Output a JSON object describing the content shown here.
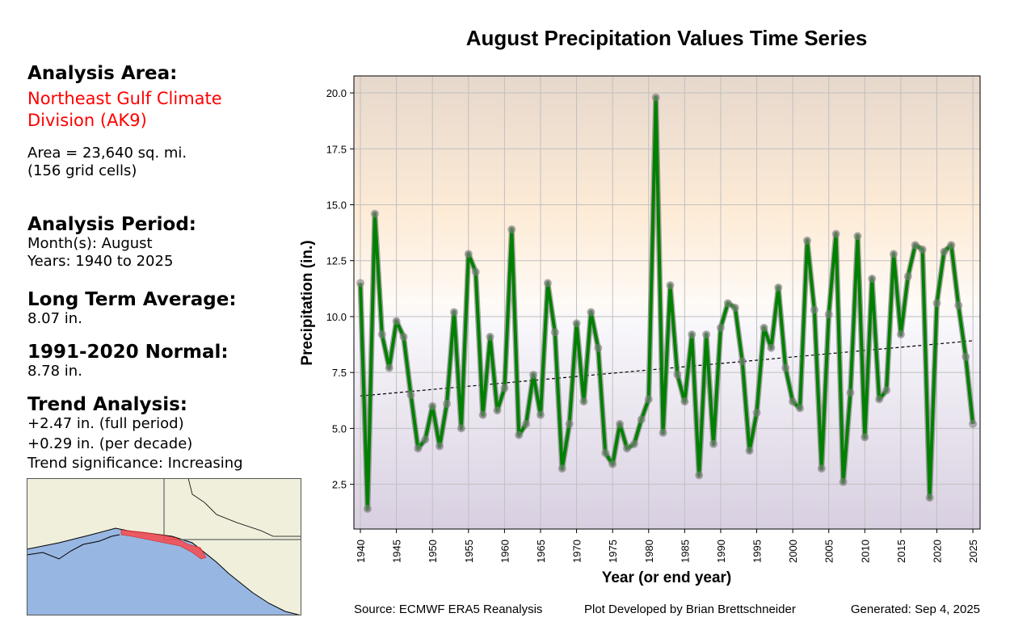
{
  "left_panel": {
    "area_header": "Analysis Area:",
    "area_name_line1": "Northeast Gulf Climate",
    "area_name_line2": "Division (AK9)",
    "area_size_line1": "Area = 23,640 sq. mi.",
    "area_size_line2": "(156 grid cells)",
    "period_header": "Analysis Period:",
    "period_months": "Month(s): August",
    "period_years": "Years: 1940 to 2025",
    "lta_header": "Long Term Average:",
    "lta_value": "8.07 in.",
    "normal_header": "1991-2020 Normal:",
    "normal_value": "8.78 in.",
    "trend_header": "Trend Analysis:",
    "trend_full": "+2.47 in. (full period)",
    "trend_decade": "+0.29 in. (per decade)",
    "trend_significance": "Trend significance: Increasing"
  },
  "footer": {
    "source": "Source: ECMWF ERA5 Reanalysis",
    "developer": "Plot Developed by Brian Brettschneider",
    "generated": "Generated: Sep 4, 2025"
  },
  "colors": {
    "line": "#008000",
    "marker": "#808080",
    "trend": "#000000",
    "highlight_region": "#ff4444",
    "ocean": "#97b6e1",
    "land": "#efefdb"
  },
  "chart_data": {
    "type": "line",
    "title": "August Precipitation Values Time Series",
    "xlabel": "Year (or end year)",
    "ylabel": "Precipitation (in.)",
    "xlim": [
      1939.1,
      2026.0
    ],
    "ylim": [
      0.5,
      20.76
    ],
    "grid": true,
    "xticks": [
      1940,
      1945,
      1950,
      1955,
      1960,
      1965,
      1970,
      1975,
      1980,
      1985,
      1990,
      1995,
      2000,
      2005,
      2010,
      2015,
      2020,
      2025
    ],
    "yticks": [
      "2.5",
      "5.0",
      "7.5",
      "10.0",
      "12.5",
      "15.0",
      "17.5",
      "20.0"
    ],
    "x_start": 1940,
    "values": [
      11.5,
      1.4,
      14.6,
      9.2,
      7.7,
      9.8,
      9.1,
      6.5,
      4.1,
      4.5,
      6.0,
      4.2,
      6.1,
      10.2,
      5.0,
      12.8,
      12.0,
      5.6,
      9.1,
      5.8,
      6.8,
      13.9,
      4.7,
      5.2,
      7.4,
      5.6,
      11.5,
      9.3,
      3.2,
      5.2,
      9.7,
      6.2,
      10.2,
      8.6,
      3.9,
      3.4,
      5.2,
      4.1,
      4.3,
      5.4,
      6.3,
      19.8,
      4.8,
      11.4,
      7.4,
      6.2,
      9.2,
      2.9,
      9.2,
      4.3,
      9.5,
      10.6,
      10.4,
      8.0,
      4.0,
      5.7,
      9.5,
      8.6,
      11.3,
      7.7,
      6.2,
      5.9,
      13.4,
      10.3,
      3.2,
      10.1,
      13.7,
      2.6,
      6.6,
      13.6,
      4.6,
      11.7,
      6.3,
      6.7,
      12.8,
      9.2,
      11.8,
      13.2,
      13.0,
      1.9,
      10.6,
      12.9,
      13.2,
      10.5,
      8.2,
      5.2
    ],
    "trend_line": {
      "x": [
        1940,
        2025
      ],
      "y": [
        6.45,
        8.92
      ]
    }
  }
}
